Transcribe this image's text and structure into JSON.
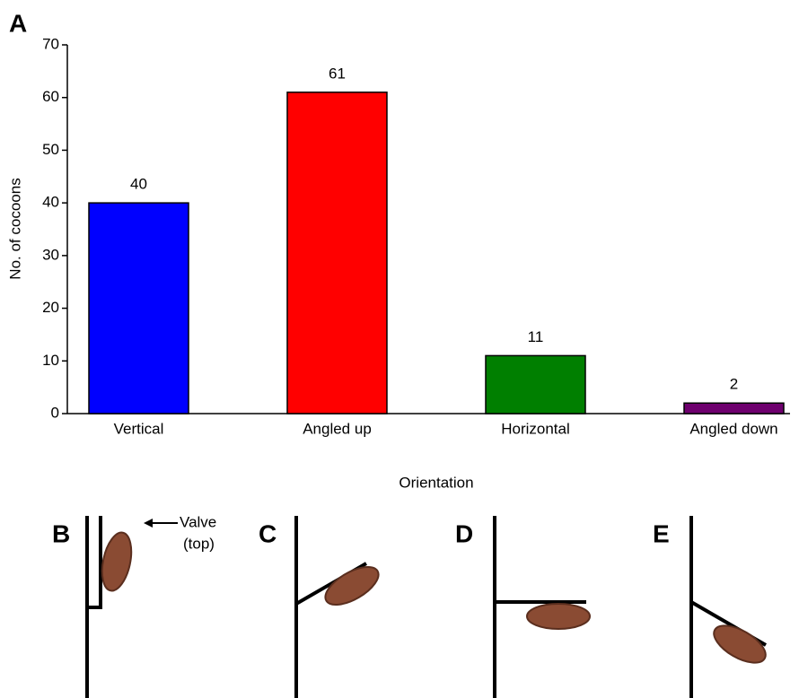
{
  "chart_data": {
    "type": "bar",
    "panel_label": "A",
    "categories": [
      "Vertical",
      "Angled up",
      "Horizontal",
      "Angled down"
    ],
    "values": [
      40,
      61,
      11,
      2
    ],
    "colors": [
      "#0000ff",
      "#ff0000",
      "#007f00",
      "#6e006e"
    ],
    "x_label": "Orientation",
    "y_label": "No. of cocoons",
    "ylim": [
      0,
      70
    ],
    "yticks": [
      0,
      10,
      20,
      30,
      40,
      50,
      60,
      70
    ],
    "grid": false
  },
  "panels": {
    "labels": [
      "B",
      "C",
      "D",
      "E"
    ],
    "valve_label": [
      "Valve",
      "(top)"
    ]
  }
}
